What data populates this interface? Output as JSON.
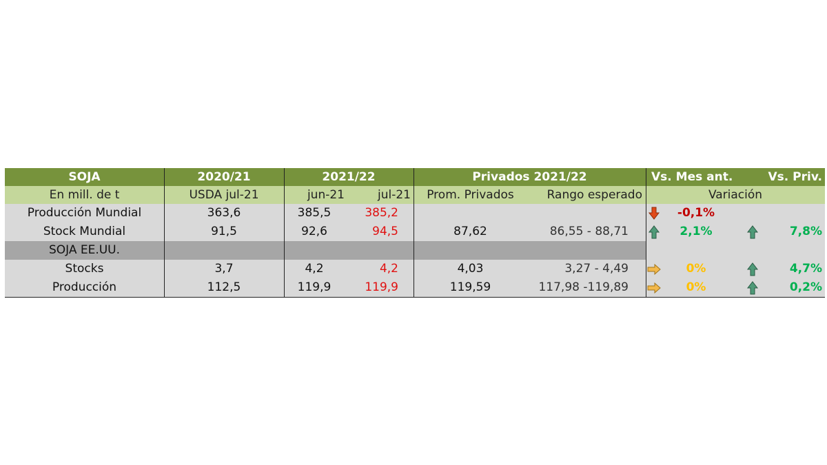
{
  "header": {
    "soja": "SOJA",
    "season_prev": "2020/21",
    "season_cur": "2021/22",
    "privados": "Privados 2021/22",
    "vs_mes": "Vs. Mes  ant.",
    "vs_priv": "Vs. Priv."
  },
  "subheader": {
    "unit": "En mill. de t",
    "usda": "USDA jul-21",
    "jun": "jun-21",
    "jul": "jul-21",
    "prom": "Prom. Privados",
    "rango": "Rango esperado",
    "variacion": "Variación"
  },
  "rows": [
    {
      "label": "Producción Mundial",
      "usda": "363,6",
      "jun": "385,5",
      "jul": "385,2",
      "vs_mes": "-0,1%"
    },
    {
      "label": "Stock Mundial",
      "usda": "91,5",
      "jun": "92,6",
      "jul": "94,5",
      "prom": "87,62",
      "rango": "86,55 - 88,71",
      "vs_mes": "2,1%",
      "vs_priv": "7,8%"
    },
    {
      "label": "SOJA EE.UU."
    },
    {
      "label": "Stocks",
      "usda": "3,7",
      "jun": "4,2",
      "jul": "4,2",
      "prom": "4,03",
      "rango": "3,27 - 4,49",
      "vs_mes": "0%",
      "vs_priv": "4,7%"
    },
    {
      "label": "Producción",
      "usda": "112,5",
      "jun": "119,9",
      "jul": "119,9",
      "prom": "119,59",
      "rango": "117,98 -119,89",
      "vs_mes": "0%",
      "vs_priv": "0,2%"
    }
  ]
}
